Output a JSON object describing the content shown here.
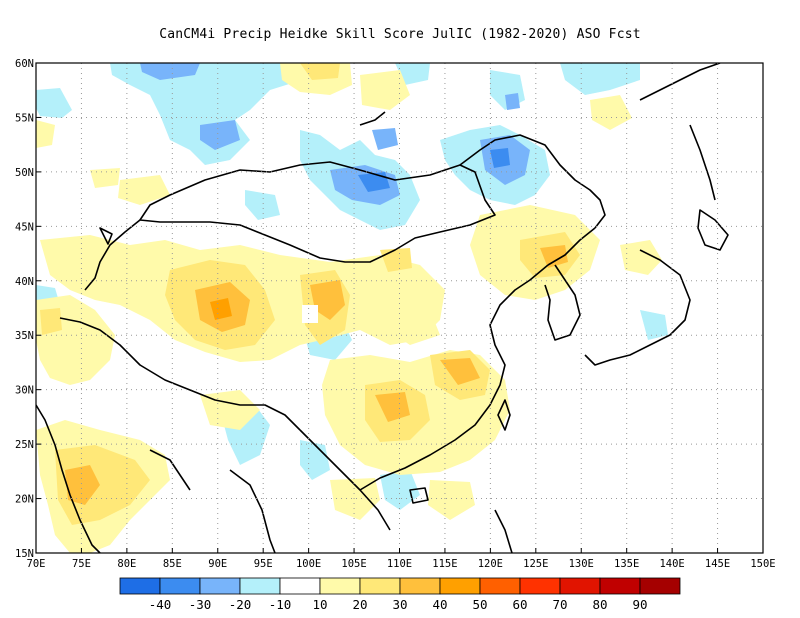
{
  "title": "CanCM4i Precip Heidke Skill Score JulIC (1982-2020) ASO Fcst",
  "map": {
    "lon_range": [
      70,
      150
    ],
    "lat_range": [
      15,
      60
    ],
    "x_ticks": [
      "70E",
      "75E",
      "80E",
      "85E",
      "90E",
      "95E",
      "100E",
      "105E",
      "110E",
      "115E",
      "120E",
      "125E",
      "130E",
      "135E",
      "140E",
      "145E",
      "150E"
    ],
    "y_ticks": [
      "15N",
      "20N",
      "25N",
      "30N",
      "35N",
      "40N",
      "45N",
      "50N",
      "55N",
      "60N"
    ],
    "grid": "dotted"
  },
  "colorbar": {
    "colors": [
      "#1e6ee6",
      "#3c8cf0",
      "#78b4fa",
      "#b4f0fa",
      "#ffffff",
      "#fffaaa",
      "#ffe878",
      "#ffc03c",
      "#ffa000",
      "#ff6000",
      "#ff3200",
      "#e11400",
      "#c00000",
      "#a50000"
    ],
    "labels": [
      "-40",
      "-30",
      "-20",
      "-10",
      "10",
      "20",
      "30",
      "40",
      "50",
      "60",
      "70",
      "80",
      "90"
    ]
  },
  "color_legend": {
    "positive": "#ffe878",
    "negative": "#b4f0fa"
  }
}
